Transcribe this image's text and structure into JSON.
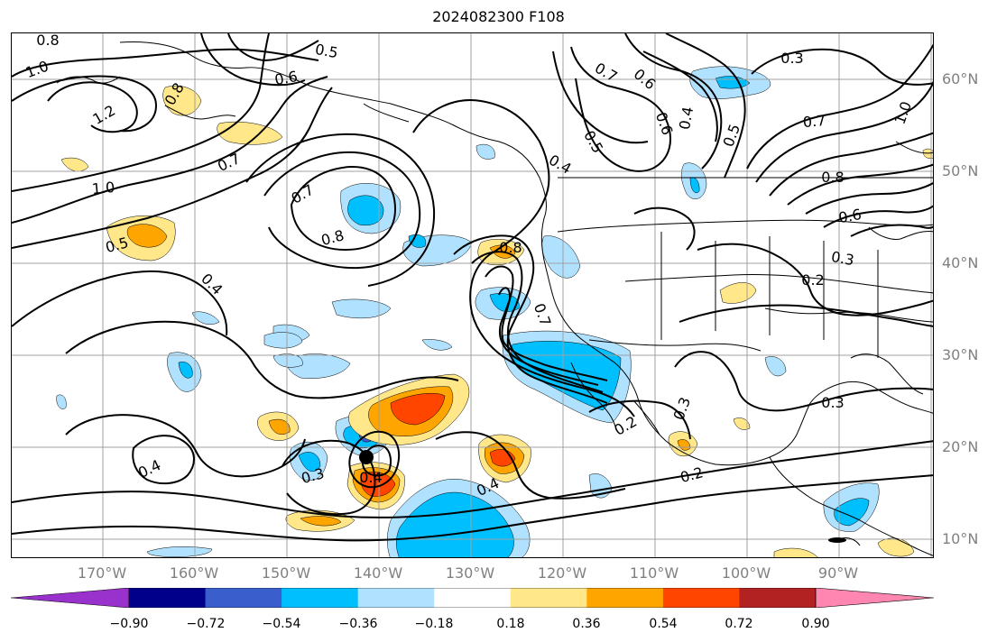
{
  "title": "2024082300 F108",
  "latitude_labels": [
    "60°N",
    "50°N",
    "40°N",
    "30°N",
    "20°N",
    "10°N"
  ],
  "longitude_labels": [
    "170°W",
    "160°W",
    "150°W",
    "140°W",
    "130°W",
    "120°W",
    "110°W",
    "100°W",
    "90°W"
  ],
  "contour_labels": [
    "0.8",
    "1.0",
    "1.2",
    "0.8",
    "0.6",
    "0.5",
    "0.7",
    "1.0",
    "0.5",
    "0.7",
    "0.8",
    "0.4",
    "0.8",
    "0.7",
    "0.4",
    "0.5",
    "0.6",
    "0.7",
    "0.6",
    "0.4",
    "0.5",
    "0.3",
    "1.0",
    "0.7",
    "0.8",
    "0.6",
    "0.3",
    "0.2",
    "0.3",
    "0.2",
    "0.3",
    "0.2",
    "0.4",
    "0.3",
    "0.4",
    "0.4"
  ],
  "colorbar": {
    "tick_labels": [
      "−0.90",
      "−0.72",
      "−0.54",
      "−0.36",
      "−0.18",
      "0.18",
      "0.36",
      "0.54",
      "0.72",
      "0.90"
    ],
    "colors": [
      "#9932cc",
      "#00008b",
      "#3a5fcd",
      "#00bfff",
      "#b0e2ff",
      "#ffffff",
      "#ffe78a",
      "#ffa500",
      "#ff4500",
      "#b22222",
      "#ff86b0"
    ]
  },
  "colors": {
    "land_outline": "#000000",
    "grid": "#a0a0a0",
    "contour": "#000000",
    "axis_label": "#808080"
  }
}
